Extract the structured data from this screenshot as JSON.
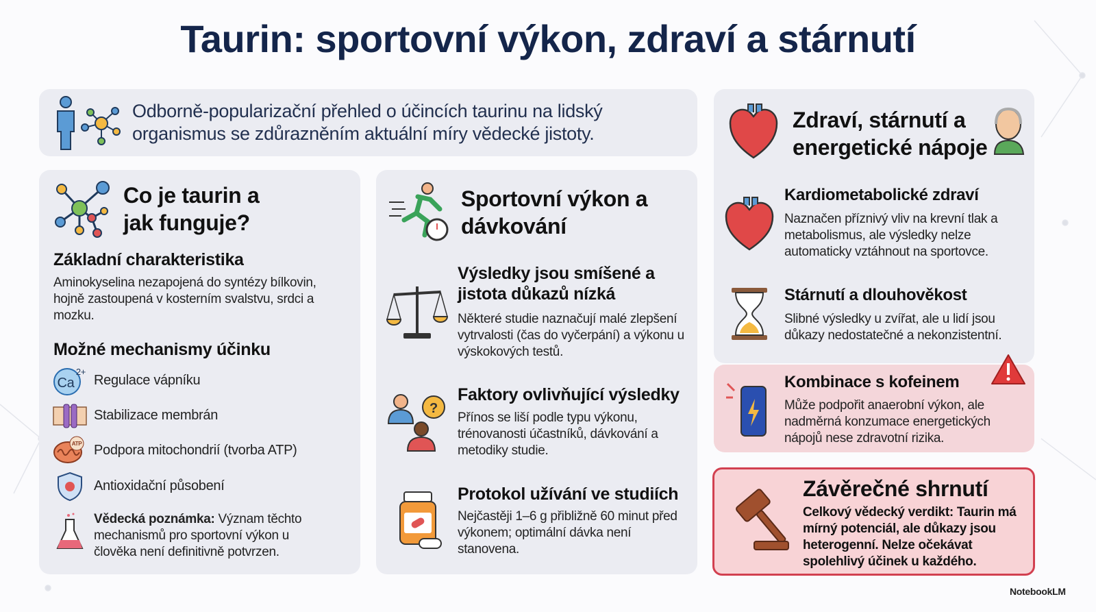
{
  "header": {
    "title": "Taurin: sportovní výkon, zdraví a stárnutí"
  },
  "intro": "Odborně-popularizační přehled o účincích taurinu na lidský organismus se zdůrazněním aktuální míry vědecké jistoty.",
  "left_panel": {
    "title": "Co je taurin a jak funguje?",
    "basics": {
      "heading": "Základní charakteristika",
      "text": "Aminokyselina nezapojená do syntézy bílkovin, hojně zastoupená v kosterním svalstvu, srdci a mozku."
    },
    "mechanisms": {
      "heading": "Možné mechanismy účinku",
      "items": [
        {
          "label": "Regulace vápníku",
          "icon_text": "Ca",
          "icon_superscript": "2+"
        },
        {
          "label": "Stabilizace membrán"
        },
        {
          "label": "Podpora mitochondrií (tvorba ATP)",
          "icon_text": "ATP"
        },
        {
          "label": "Antioxidační působení"
        }
      ]
    },
    "note": {
      "label": "Vědecká poznámka:",
      "text": "Význam těchto mechanismů pro sportovní výkon u člověka není definitivně potvrzen."
    }
  },
  "middle_panel": {
    "title": "Sportovní výkon a dávkování",
    "items": [
      {
        "heading": "Výsledky jsou smíšené a jistota důkazů nízká",
        "text": "Některé studie naznačují malé zlepšení vytrvalosti (čas do vyčerpání) a výkonu u výskokových testů."
      },
      {
        "heading": "Faktory ovlivňující výsledky",
        "text": "Přínos se liší podle typu výkonu, trénovanosti účastníků, dávkování a metodiky studie."
      },
      {
        "heading": "Protokol užívání ve studiích",
        "text": "Nejčastěji 1–6 g přibližně 60 minut před výkonem; optimální dávka není stanovena."
      }
    ]
  },
  "right_panel": {
    "title": "Zdraví, stárnutí a energetické nápoje",
    "items": [
      {
        "heading": "Kardiometabolické zdraví",
        "text": "Naznačen příznivý vliv na krevní tlak a metabolismus, ale výsledky nelze automaticky vztáhnout na sportovce."
      },
      {
        "heading": "Stárnutí a dlouhověkost",
        "text": "Slibné výsledky u zvířat, ale u lidí jsou důkazy nedostatečné a nekonzistentní."
      }
    ],
    "warning": {
      "heading": "Kombinace s kofeinem",
      "text": "Může podpořit anaerobní výkon, ale nadměrná konzumace energetických nápojů nese zdravotní rizika."
    }
  },
  "summary": {
    "heading": "Závěrečné shrnutí",
    "text": "Celkový vědecký verdikt: Taurin má mírný potenciál, ale důkazy jsou heterogenní. Nelze očekávat spolehlivý účinek u každého."
  },
  "footer": {
    "brand": "NotebookLM"
  }
}
